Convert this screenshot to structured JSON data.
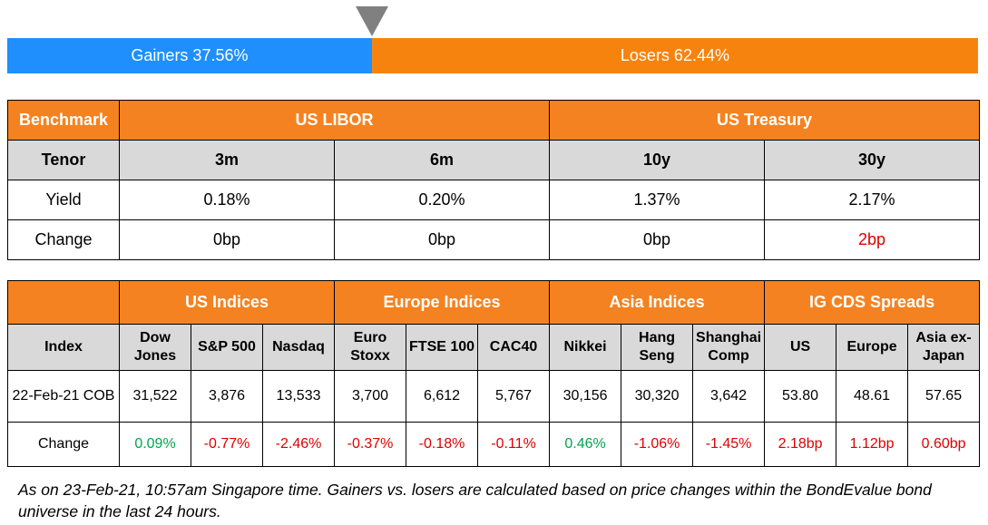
{
  "gainers_losers": {
    "gainers_label": "Gainers 37.56%",
    "losers_label": "Losers 62.44%",
    "gainers_fraction": 0.3756,
    "gainers_color": "#1e8ffd",
    "losers_color": "#f7830f"
  },
  "rates_table": {
    "benchmark_label": "Benchmark",
    "groups": [
      "US LIBOR",
      "US Treasury"
    ],
    "tenor_label": "Tenor",
    "tenors": [
      "3m",
      "6m",
      "10y",
      "30y"
    ],
    "yield_label": "Yield",
    "yields": [
      "0.18%",
      "0.20%",
      "1.37%",
      "2.17%"
    ],
    "change_label": "Change",
    "changes": [
      "0bp",
      "0bp",
      "0bp",
      "2bp"
    ],
    "change_colors": [
      "black",
      "black",
      "black",
      "red"
    ]
  },
  "indices_table": {
    "index_label": "Index",
    "groups": [
      "US Indices",
      "Europe Indices",
      "Asia Indices",
      "IG CDS Spreads"
    ],
    "columns": [
      [
        "Dow",
        "Jones"
      ],
      [
        "S&P 500"
      ],
      [
        "Nasdaq"
      ],
      [
        "Euro",
        "Stoxx"
      ],
      [
        "FTSE 100"
      ],
      [
        "CAC40"
      ],
      [
        "Nikkei"
      ],
      [
        "Hang",
        "Seng"
      ],
      [
        "Shanghai",
        "Comp"
      ],
      [
        "US"
      ],
      [
        "Europe"
      ],
      [
        "Asia ex-",
        "Japan"
      ]
    ],
    "date_label": "22-Feb-21 COB",
    "values": [
      "31,522",
      "3,876",
      "13,533",
      "3,700",
      "6,612",
      "5,767",
      "30,156",
      "30,320",
      "3,642",
      "53.80",
      "48.61",
      "57.65"
    ],
    "change_label": "Change",
    "changes": [
      "0.09%",
      "-0.77%",
      "-2.46%",
      "-0.37%",
      "-0.18%",
      "-0.11%",
      "0.46%",
      "-1.06%",
      "-1.45%",
      "2.18bp",
      "1.12bp",
      "0.60bp"
    ],
    "change_colors": [
      "green",
      "red",
      "red",
      "red",
      "red",
      "red",
      "green",
      "red",
      "red",
      "red",
      "red",
      "red"
    ]
  },
  "footnote": "As on 23-Feb-21, 10:57am Singapore time. Gainers vs. losers are calculated based on price changes within the BondEvalue bond universe in the last 24 hours."
}
